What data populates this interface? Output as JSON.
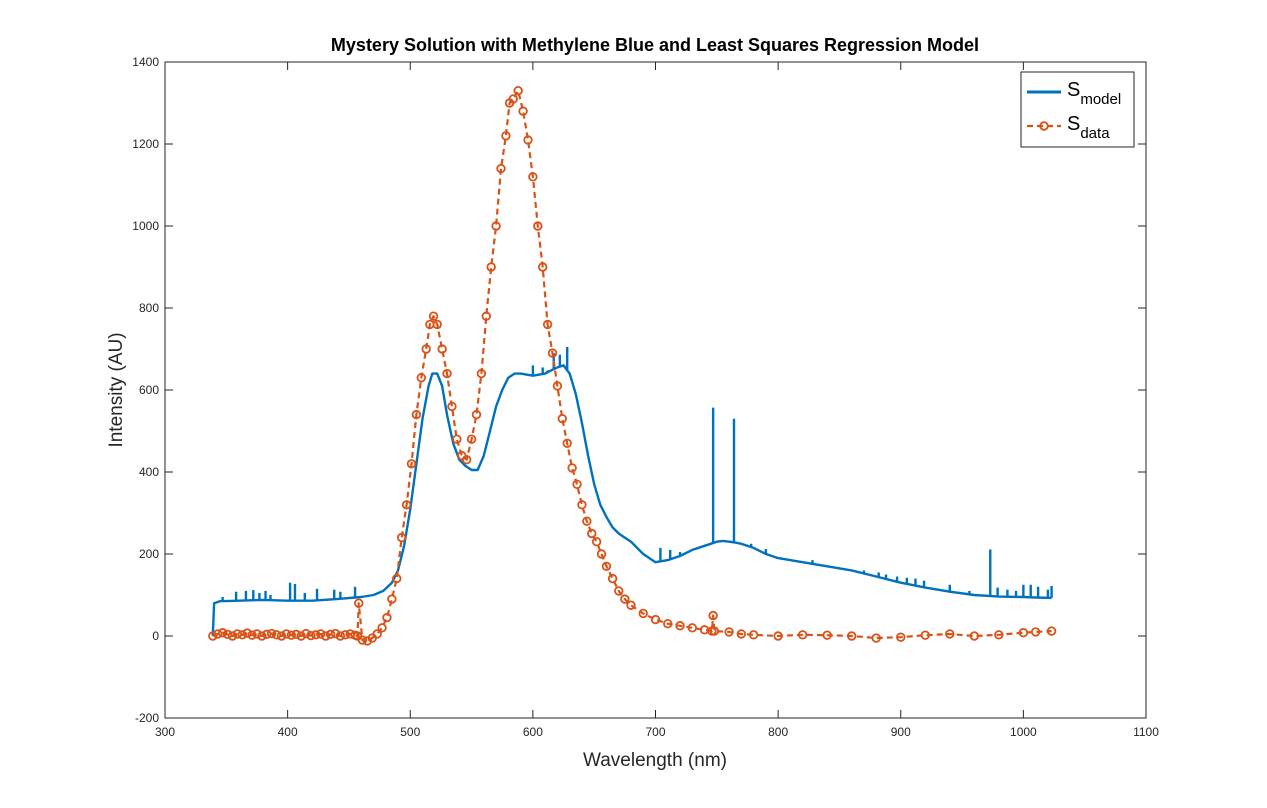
{
  "chart_data": {
    "type": "line",
    "title": "Mystery Solution with Methylene Blue and Least Squares Regression Model",
    "xlabel": "Wavelength (nm)",
    "ylabel": "Intensity (AU)",
    "xlim": [
      300,
      1100
    ],
    "ylim": [
      -200,
      1400
    ],
    "xticks": [
      300,
      400,
      500,
      600,
      700,
      800,
      900,
      1000,
      1100
    ],
    "yticks": [
      -200,
      0,
      200,
      400,
      600,
      800,
      1000,
      1200,
      1400
    ],
    "grid": false,
    "legend_position": "top-right",
    "series": [
      {
        "name": "S_model",
        "legend_main": "S",
        "legend_sub": "model",
        "color": "#0072BD",
        "style": "solid",
        "marker": "none",
        "x": [
          339,
          340,
          345,
          350,
          360,
          370,
          380,
          400,
          420,
          440,
          460,
          470,
          478,
          485,
          490,
          495,
          500,
          505,
          510,
          515,
          518,
          522,
          526,
          530,
          535,
          540,
          545,
          550,
          555,
          560,
          565,
          570,
          575,
          580,
          585,
          590,
          600,
          610,
          615,
          620,
          625,
          630,
          635,
          640,
          645,
          650,
          655,
          660,
          665,
          670,
          675,
          680,
          690,
          700,
          710,
          720,
          730,
          740,
          745,
          750,
          755,
          760,
          765,
          770,
          780,
          790,
          800,
          820,
          840,
          860,
          880,
          900,
          920,
          940,
          960,
          980,
          1000,
          1010,
          1023
        ],
        "y": [
          0,
          80,
          85,
          85,
          86,
          87,
          88,
          86,
          86,
          90,
          95,
          100,
          110,
          130,
          160,
          220,
          310,
          420,
          530,
          610,
          640,
          640,
          610,
          540,
          470,
          430,
          415,
          405,
          405,
          440,
          500,
          560,
          600,
          630,
          640,
          640,
          635,
          640,
          648,
          655,
          660,
          640,
          590,
          520,
          440,
          370,
          320,
          290,
          265,
          250,
          240,
          230,
          200,
          180,
          185,
          195,
          210,
          220,
          225,
          230,
          232,
          230,
          228,
          225,
          215,
          200,
          190,
          180,
          170,
          160,
          145,
          130,
          118,
          108,
          100,
          96,
          95,
          94,
          93
        ],
        "spikes": [
          {
            "x": 347,
            "y": 95
          },
          {
            "x": 358,
            "y": 108
          },
          {
            "x": 366,
            "y": 110
          },
          {
            "x": 372,
            "y": 112
          },
          {
            "x": 377,
            "y": 105
          },
          {
            "x": 382,
            "y": 110
          },
          {
            "x": 386,
            "y": 100
          },
          {
            "x": 402,
            "y": 130
          },
          {
            "x": 406,
            "y": 127
          },
          {
            "x": 414,
            "y": 105
          },
          {
            "x": 424,
            "y": 115
          },
          {
            "x": 438,
            "y": 113
          },
          {
            "x": 443,
            "y": 108
          },
          {
            "x": 455,
            "y": 120
          },
          {
            "x": 600,
            "y": 660
          },
          {
            "x": 608,
            "y": 655
          },
          {
            "x": 612,
            "y": 648
          },
          {
            "x": 617,
            "y": 690
          },
          {
            "x": 622,
            "y": 686
          },
          {
            "x": 628,
            "y": 705
          },
          {
            "x": 704,
            "y": 215
          },
          {
            "x": 712,
            "y": 210
          },
          {
            "x": 720,
            "y": 205
          },
          {
            "x": 747,
            "y": 557
          },
          {
            "x": 764,
            "y": 530
          },
          {
            "x": 778,
            "y": 225
          },
          {
            "x": 790,
            "y": 212
          },
          {
            "x": 828,
            "y": 185
          },
          {
            "x": 842,
            "y": 170
          },
          {
            "x": 870,
            "y": 160
          },
          {
            "x": 882,
            "y": 155
          },
          {
            "x": 888,
            "y": 150
          },
          {
            "x": 897,
            "y": 145
          },
          {
            "x": 905,
            "y": 142
          },
          {
            "x": 912,
            "y": 140
          },
          {
            "x": 919,
            "y": 135
          },
          {
            "x": 940,
            "y": 125
          },
          {
            "x": 956,
            "y": 110
          },
          {
            "x": 973,
            "y": 211
          },
          {
            "x": 979,
            "y": 118
          },
          {
            "x": 987,
            "y": 113
          },
          {
            "x": 994,
            "y": 110
          },
          {
            "x": 1000,
            "y": 125
          },
          {
            "x": 1006,
            "y": 125
          },
          {
            "x": 1012,
            "y": 120
          },
          {
            "x": 1020,
            "y": 113
          },
          {
            "x": 1023,
            "y": 122
          }
        ]
      },
      {
        "name": "S_data",
        "legend_main": "S",
        "legend_sub": "data",
        "color": "#D95319",
        "style": "dashed",
        "marker": "circle",
        "x": [
          339,
          343,
          347,
          351,
          355,
          359,
          363,
          367,
          371,
          375,
          379,
          383,
          387,
          391,
          395,
          399,
          403,
          407,
          411,
          415,
          419,
          423,
          427,
          431,
          435,
          439,
          443,
          447,
          451,
          455,
          457,
          458,
          461,
          465,
          469,
          473,
          477,
          481,
          485,
          489,
          493,
          497,
          501,
          505,
          509,
          513,
          516,
          519,
          522,
          526,
          530,
          534,
          538,
          542,
          546,
          550,
          554,
          558,
          562,
          566,
          570,
          574,
          578,
          581,
          584,
          588,
          592,
          596,
          600,
          604,
          608,
          612,
          616,
          620,
          624,
          628,
          632,
          636,
          640,
          644,
          648,
          652,
          656,
          660,
          665,
          670,
          675,
          680,
          690,
          700,
          710,
          720,
          730,
          740,
          746,
          747,
          748,
          760,
          770,
          780,
          800,
          820,
          840,
          860,
          880,
          900,
          920,
          940,
          960,
          980,
          1000,
          1010,
          1023
        ],
        "y": [
          0,
          5,
          8,
          4,
          0,
          5,
          3,
          7,
          2,
          5,
          0,
          4,
          6,
          3,
          0,
          5,
          2,
          4,
          0,
          6,
          1,
          3,
          5,
          0,
          4,
          6,
          0,
          3,
          5,
          2,
          0,
          80,
          -10,
          -12,
          -5,
          5,
          20,
          45,
          90,
          140,
          240,
          320,
          420,
          540,
          630,
          700,
          760,
          780,
          760,
          700,
          640,
          560,
          480,
          440,
          430,
          480,
          540,
          640,
          780,
          900,
          1000,
          1140,
          1220,
          1300,
          1310,
          1330,
          1280,
          1210,
          1120,
          1000,
          900,
          760,
          690,
          610,
          530,
          470,
          410,
          370,
          320,
          280,
          250,
          230,
          200,
          170,
          140,
          110,
          90,
          75,
          55,
          40,
          30,
          25,
          20,
          15,
          12,
          50,
          12,
          10,
          5,
          3,
          0,
          3,
          2,
          0,
          -5,
          -3,
          2,
          5,
          0,
          3,
          8,
          10,
          12
        ]
      }
    ]
  }
}
